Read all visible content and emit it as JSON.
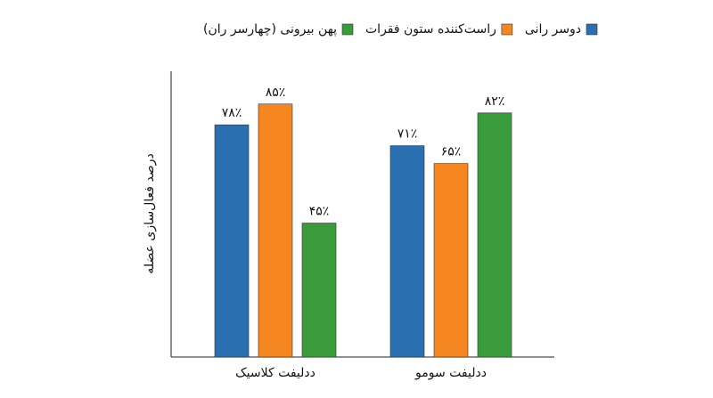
{
  "chart_data": {
    "type": "bar",
    "y_label": "درصد فعال‌سازی عضله",
    "categories": [
      "ددلیفت کلاسیک",
      "ددلیفت سومو"
    ],
    "series": [
      {
        "name": "دوسر رانی",
        "color": "#2a70b0",
        "values": [
          78,
          71
        ],
        "value_labels": [
          "۷۸٪",
          "۷۱٪"
        ]
      },
      {
        "name": "راست‌کننده ستون فقرات",
        "color": "#f6861f",
        "values": [
          85,
          65
        ],
        "value_labels": [
          "۸۵٪",
          "۶۵٪"
        ]
      },
      {
        "name": "پهن بیرونی (چهارسر ران)",
        "color": "#3a9b3a",
        "values": [
          45,
          82
        ],
        "value_labels": [
          "۴۵٪",
          "۸۲٪"
        ]
      }
    ],
    "ylim": [
      0,
      96
    ],
    "legend": "top"
  }
}
